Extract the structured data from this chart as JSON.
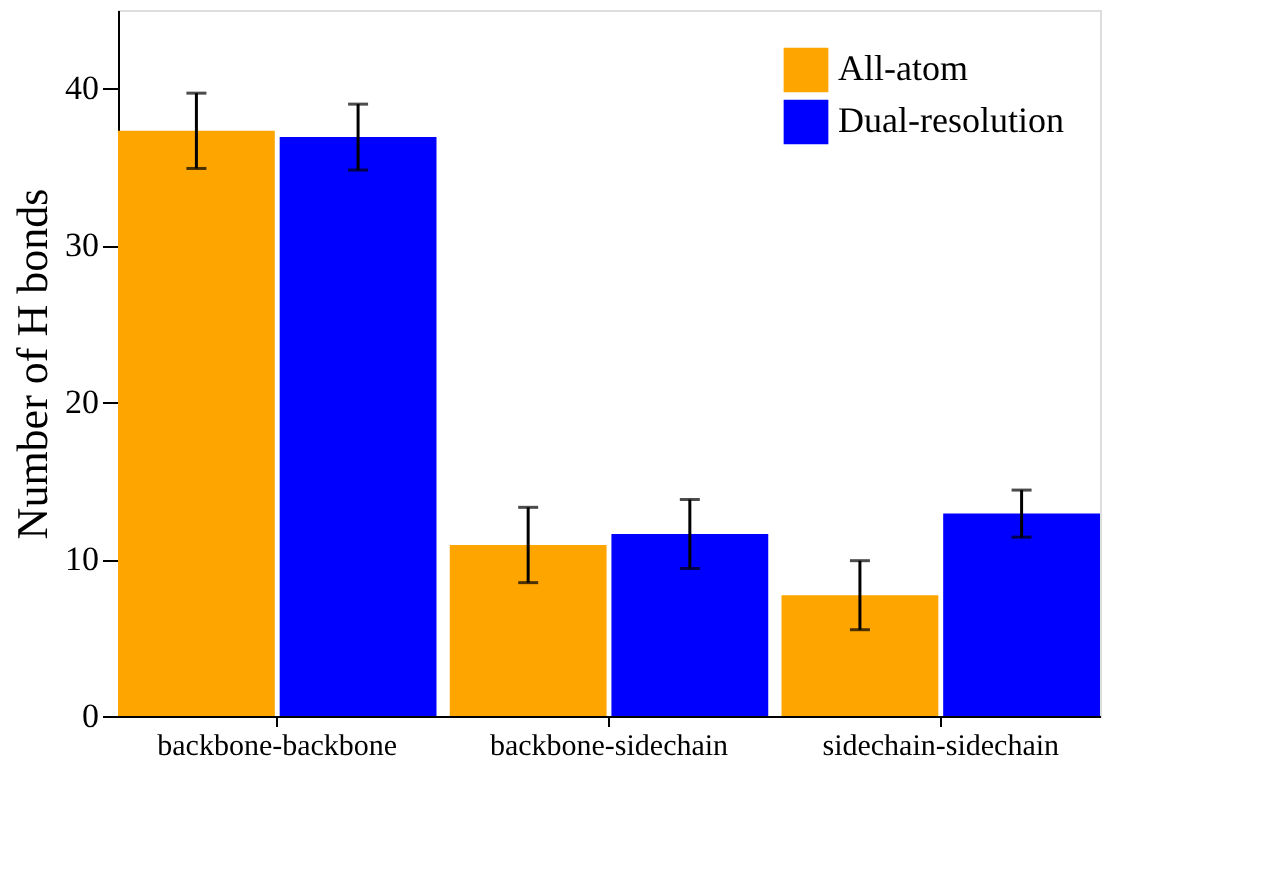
{
  "chart_data": {
    "type": "bar",
    "ylabel": "Number of H bonds",
    "categories": [
      "backbone-backbone",
      "backbone-sidechain",
      "sidechain-sidechain"
    ],
    "series": [
      {
        "name": "All-atom",
        "color": "#ffa500",
        "values": [
          37.3,
          10.9,
          7.7
        ],
        "errors": [
          2.4,
          2.4,
          2.2
        ]
      },
      {
        "name": "Dual-resolution",
        "color": "#0000ff",
        "values": [
          36.9,
          11.6,
          12.9
        ],
        "errors": [
          2.1,
          2.2,
          1.5
        ]
      }
    ],
    "ylim": [
      0,
      45
    ],
    "yticks": [
      0,
      10,
      20,
      30,
      40
    ],
    "grid": false,
    "legend": "top right"
  }
}
